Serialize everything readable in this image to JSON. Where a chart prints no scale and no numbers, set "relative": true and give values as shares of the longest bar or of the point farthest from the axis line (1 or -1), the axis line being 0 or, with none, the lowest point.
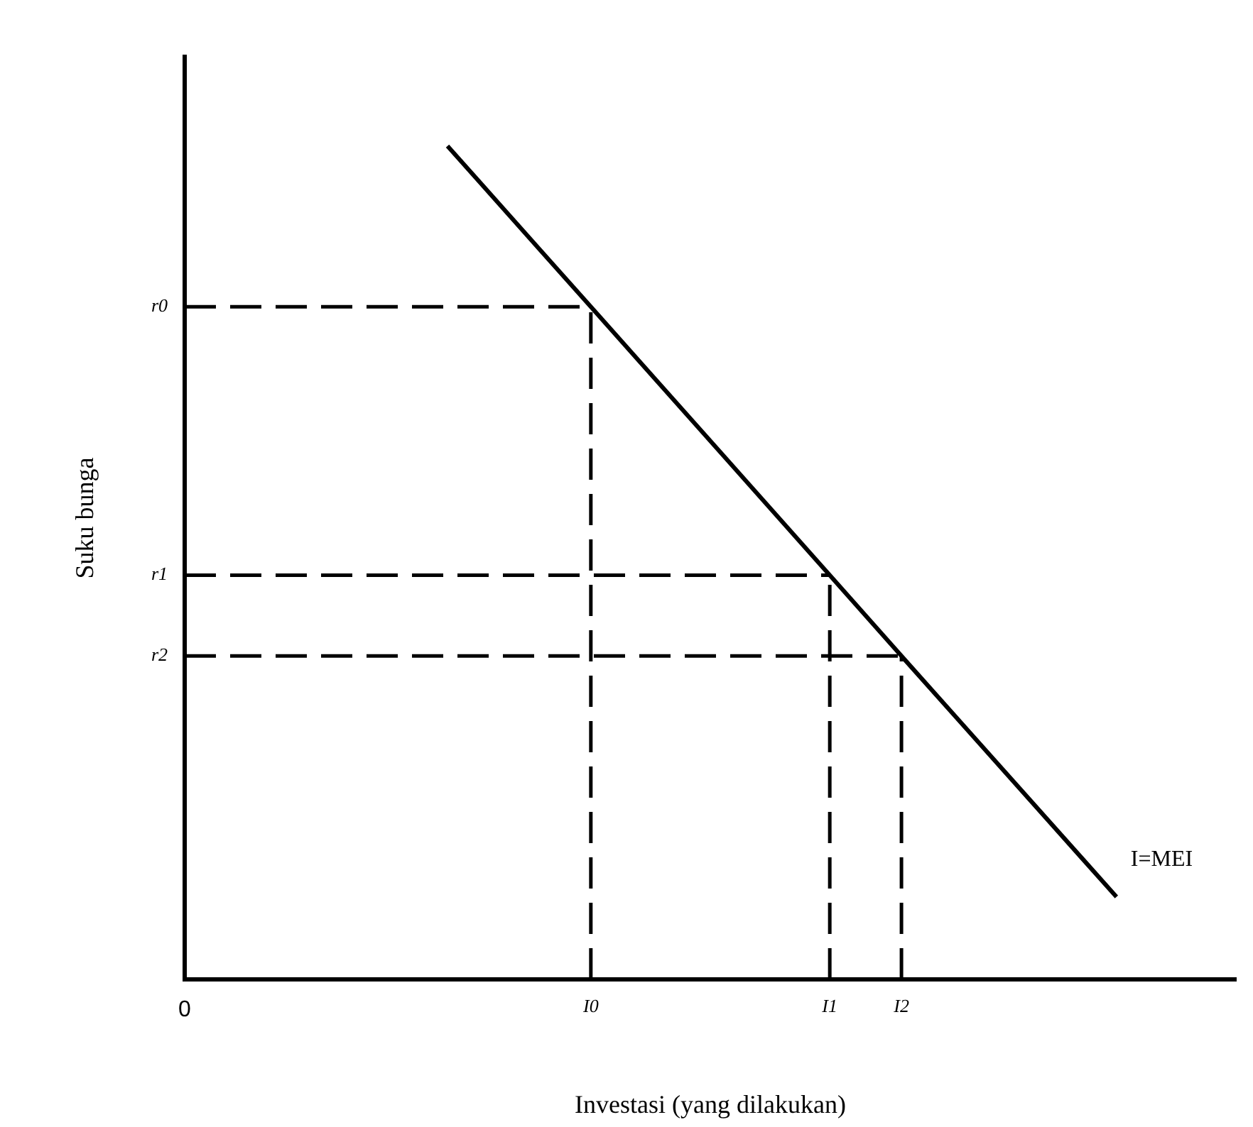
{
  "chart_data": {
    "type": "line",
    "xlabel": "Investasi (yang dilakukan)",
    "ylabel": "Suku bunga",
    "relative": true,
    "legend": false,
    "marker": "none",
    "categories": [
      "0",
      null,
      null,
      null,
      null,
      null,
      null,
      null,
      null,
      null,
      null,
      null,
      null,
      null,
      null,
      null,
      null,
      "I0",
      null,
      null,
      null,
      null,
      null,
      null,
      null,
      null,
      null,
      "I1",
      null,
      null,
      "I2",
      null,
      null,
      null,
      null,
      null,
      null,
      null,
      null,
      null,
      null,
      null,
      null,
      null,
      null
    ],
    "series": [
      {
        "name": "I=MEI",
        "color": "#000000",
        "line_style": "solid",
        "values": [
          null,
          null,
          null,
          null,
          null,
          null,
          null,
          null,
          null,
          null,
          null,
          1,
          null,
          null,
          null,
          null,
          null,
          0.807,
          null,
          null,
          null,
          null,
          null,
          null,
          null,
          null,
          null,
          0.485,
          null,
          null,
          0.388,
          null,
          null,
          null,
          null,
          null,
          null,
          null,
          null,
          0.099,
          null,
          null,
          null,
          null,
          null
        ]
      }
    ],
    "ref_lines": [
      {
        "axis": "y",
        "value": 0.807,
        "label": "r0",
        "line_style": "dashed",
        "color": "#000000"
      },
      {
        "axis": "y",
        "value": 0.485,
        "label": "r1",
        "line_style": "dashed",
        "color": "#000000"
      },
      {
        "axis": "y",
        "value": 0.388,
        "label": "r2",
        "line_style": "dashed",
        "color": "#000000"
      },
      {
        "axis": "x",
        "value": "I0",
        "line_style": "dashed",
        "color": "#000000"
      },
      {
        "axis": "x",
        "value": "I1",
        "line_style": "dashed",
        "color": "#000000"
      },
      {
        "axis": "x",
        "value": "I2",
        "line_style": "dashed",
        "color": "#000000"
      }
    ]
  }
}
